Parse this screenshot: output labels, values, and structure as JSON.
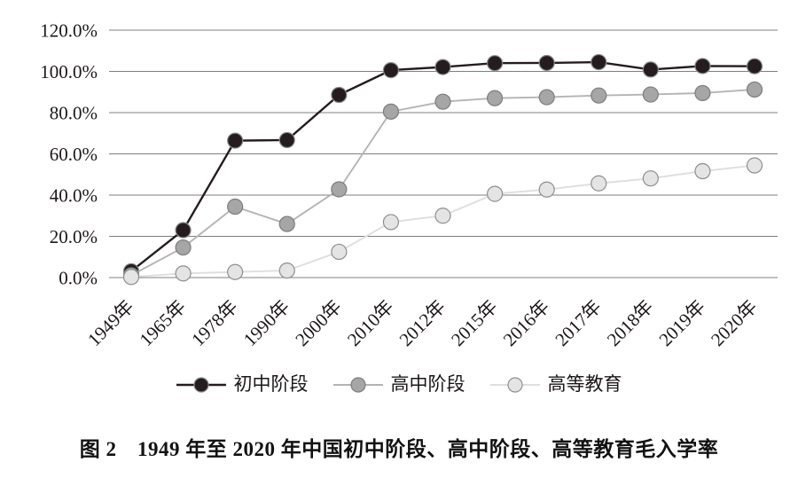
{
  "figure_caption": "图 2　1949 年至 2020 年中国初中阶段、高中阶段、高等教育毛入学率",
  "chart_data": {
    "type": "line",
    "title": "",
    "xlabel": "",
    "ylabel": "",
    "categories": [
      "1949年",
      "1965年",
      "1978年",
      "1990年",
      "2000年",
      "2010年",
      "2012年",
      "2015年",
      "2016年",
      "2017年",
      "2018年",
      "2019年",
      "2020年"
    ],
    "series": [
      {
        "name": "初中阶段",
        "values": [
          3.1,
          23.0,
          66.4,
          66.7,
          88.6,
          100.6,
          102.1,
          104.0,
          104.1,
          104.5,
          100.9,
          102.6,
          102.5
        ],
        "line_color": "#241c1e",
        "marker_fill": "#241c1e",
        "marker_stroke": "#8c8c8c"
      },
      {
        "name": "高中阶段",
        "values": [
          1.1,
          14.6,
          34.4,
          26.0,
          42.8,
          80.5,
          85.3,
          87.0,
          87.5,
          88.3,
          88.8,
          89.5,
          91.2
        ],
        "line_color": "#b4b4b4",
        "marker_fill": "#a6a6a6",
        "marker_stroke": "#7d7d7d"
      },
      {
        "name": "高等教育",
        "values": [
          0.3,
          2.0,
          2.7,
          3.4,
          12.5,
          26.9,
          30.0,
          40.6,
          42.7,
          45.7,
          48.1,
          51.6,
          54.4
        ],
        "line_color": "#dedede",
        "marker_fill": "#e4e4e4",
        "marker_stroke": "#8f8f8f"
      }
    ],
    "y_tick_labels": [
      "120.0%",
      "100.0%",
      "80.0%",
      "60.0%",
      "40.0%",
      "20.0%",
      "0.0%"
    ],
    "y_tick_values": [
      120,
      100,
      80,
      60,
      40,
      20,
      0
    ],
    "ylim": [
      0,
      120
    ],
    "grid": true,
    "gridline_color": "#7f7f7f",
    "legend_position": "bottom",
    "x_tick_rotation": -45
  }
}
